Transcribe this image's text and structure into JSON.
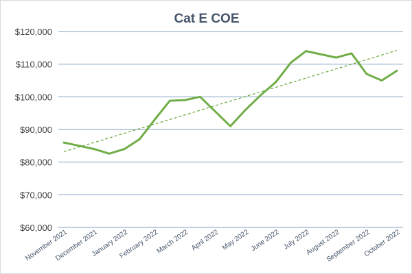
{
  "chart_data": {
    "type": "line",
    "title": "Cat E COE",
    "xlabel": "",
    "ylabel": "",
    "categories": [
      "November 2021",
      "",
      "December 2021",
      "",
      "January 2022",
      "",
      "February 2022",
      "",
      "March 2022",
      "",
      "April 2022",
      "",
      "May 2022",
      "",
      "June 2022",
      "",
      "July 2022",
      "",
      "August 2022",
      "",
      "September 2022",
      "",
      "October 2022"
    ],
    "x_tick_labels": [
      "November 2021",
      "December 2021",
      "January 2022",
      "February 2022",
      "March 2022",
      "April 2022",
      "May 2022",
      "June 2022",
      "July 2022",
      "August 2022",
      "September 2022",
      "October 2022"
    ],
    "series": [
      {
        "values": [
          86000,
          85000,
          84000,
          82600,
          84000,
          87000,
          93000,
          98800,
          99000,
          100000,
          95500,
          91000,
          96000,
          100500,
          104500,
          110500,
          114000,
          113000,
          112000,
          113300,
          107000,
          105000,
          108000
        ],
        "color": "#70ad47"
      }
    ],
    "trendline": {
      "type": "linear",
      "start": 83200,
      "end": 114200,
      "style": "dashed",
      "color": "#70ad47"
    },
    "ylim": [
      60000,
      120000
    ],
    "y_tick_labels": [
      "$60,000",
      "$70,000",
      "$80,000",
      "$90,000",
      "$100,000",
      "$110,000",
      "$120,000"
    ],
    "y_ticks": [
      60000,
      70000,
      80000,
      90000,
      100000,
      110000,
      120000
    ],
    "grid": true,
    "legend": "none"
  }
}
